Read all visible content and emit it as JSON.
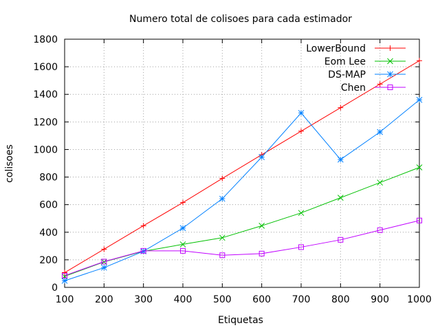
{
  "chart_data": {
    "type": "line",
    "title": "Numero total de colisoes para cada estimador",
    "xlabel": "Etiquetas",
    "ylabel": "colisoes",
    "xlim": [
      100,
      1000
    ],
    "ylim": [
      0,
      1800
    ],
    "xticks": [
      100,
      200,
      300,
      400,
      500,
      600,
      700,
      800,
      900,
      1000
    ],
    "yticks": [
      0,
      200,
      400,
      600,
      800,
      1000,
      1200,
      1400,
      1600,
      1800
    ],
    "grid": true,
    "legend_position": "top-right",
    "x": [
      100,
      200,
      300,
      400,
      500,
      600,
      700,
      800,
      900,
      1000
    ],
    "series": [
      {
        "name": "LowerBound",
        "color": "#ff0000",
        "marker": "plus",
        "values": [
          107,
          277,
          447,
          615,
          790,
          962,
          1133,
          1303,
          1474,
          1644
        ]
      },
      {
        "name": "Eom Lee",
        "color": "#00c000",
        "marker": "cross",
        "values": [
          80,
          185,
          262,
          312,
          360,
          447,
          540,
          650,
          760,
          870
        ]
      },
      {
        "name": "DS-MAP",
        "color": "#0080ff",
        "marker": "star",
        "values": [
          48,
          143,
          262,
          430,
          643,
          945,
          1265,
          927,
          1127,
          1360
        ]
      },
      {
        "name": "Chen",
        "color": "#c000ff",
        "marker": "square",
        "values": [
          85,
          187,
          265,
          265,
          233,
          245,
          292,
          345,
          415,
          485
        ]
      }
    ]
  }
}
